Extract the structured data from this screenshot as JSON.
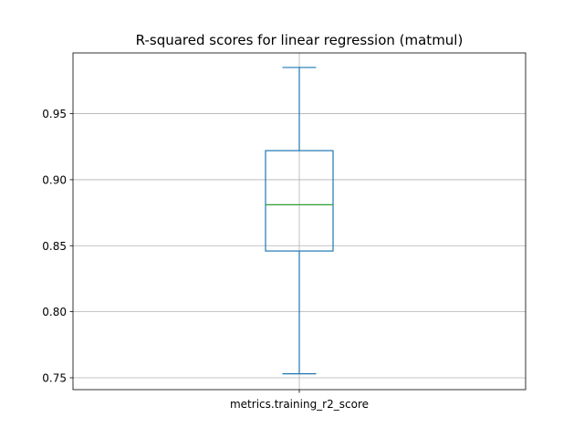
{
  "chart_data": {
    "type": "box",
    "title": "R-squared scores for linear regression (matmul)",
    "xlabel": "",
    "ylabel": "",
    "categories": [
      "metrics.training_r2_score"
    ],
    "boxes": [
      {
        "name": "metrics.training_r2_score",
        "whisker_low": 0.753,
        "q1": 0.846,
        "median": 0.881,
        "q3": 0.922,
        "whisker_high": 0.985
      }
    ],
    "ylim": [
      0.741,
      0.996
    ],
    "yticks": [
      0.75,
      0.8,
      0.85,
      0.9,
      0.95
    ],
    "ytick_labels": [
      "0.75",
      "0.80",
      "0.85",
      "0.90",
      "0.95"
    ],
    "grid": true,
    "colors": {
      "box": "#1f77b4",
      "median": "#2ca02c",
      "grid": "#b0b0b0",
      "axes": "#000000"
    }
  }
}
